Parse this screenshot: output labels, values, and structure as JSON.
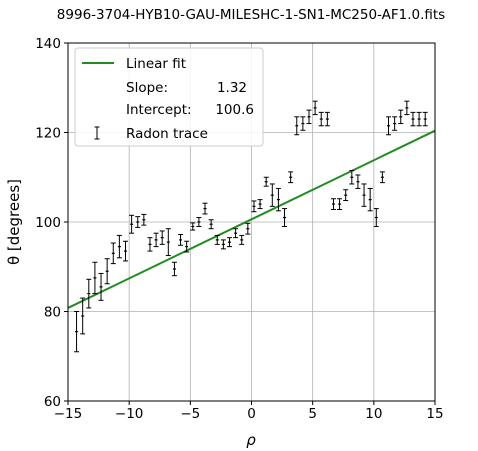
{
  "chart_data": {
    "type": "scatter",
    "title": "8996-3704-HYB10-GAU-MILESHC-1-SN1-MC250-AF1.0.fits",
    "xlabel": "ρ",
    "ylabel": "θ [degrees]",
    "xlim": [
      -15,
      15
    ],
    "ylim": [
      60,
      140
    ],
    "xticks": [
      -15,
      -10,
      -5,
      0,
      5,
      10,
      15
    ],
    "xtick_labels": [
      "−15",
      "−10",
      "−5",
      "0",
      "5",
      "10",
      "15"
    ],
    "yticks": [
      60,
      80,
      100,
      120,
      140
    ],
    "ytick_labels": [
      "60",
      "80",
      "100",
      "120",
      "140"
    ],
    "grid": true,
    "legend_position": "top-left",
    "fit": {
      "label": "Linear fit",
      "slope": 1.32,
      "intercept": 100.6,
      "slope_label": "Slope:",
      "slope_text": "1.32",
      "intercept_label": "Intercept:",
      "intercept_text": "100.6",
      "color": "#228B22"
    },
    "series": [
      {
        "name": "Radon trace",
        "color": "#000000",
        "x": [
          -14.3,
          -13.8,
          -13.3,
          -12.8,
          -12.3,
          -11.8,
          -11.3,
          -10.8,
          -10.3,
          -9.8,
          -9.3,
          -8.8,
          -8.3,
          -7.8,
          -7.3,
          -6.8,
          -6.3,
          -5.8,
          -5.3,
          -4.8,
          -4.3,
          -3.8,
          -3.3,
          -2.8,
          -2.3,
          -1.8,
          -1.3,
          -0.8,
          -0.3,
          0.2,
          0.7,
          1.2,
          1.7,
          2.2,
          2.7,
          3.2,
          3.7,
          4.2,
          4.7,
          5.2,
          5.7,
          6.2,
          6.7,
          7.2,
          7.7,
          8.2,
          8.7,
          9.2,
          9.7,
          10.2,
          10.7,
          11.2,
          11.7,
          12.2,
          12.7,
          13.2,
          13.7,
          14.2
        ],
        "y": [
          75.5,
          79,
          84,
          87.5,
          85.5,
          89,
          93,
          94.5,
          93.5,
          99.5,
          100,
          100.5,
          95,
          96,
          96.5,
          95.5,
          89.5,
          96,
          94.5,
          99,
          100,
          103,
          99.5,
          96,
          95,
          95.5,
          97.5,
          96,
          98.5,
          103.5,
          104,
          109,
          106,
          105,
          101,
          110,
          121.5,
          122,
          123.5,
          125.5,
          123,
          123,
          104,
          104,
          106,
          110,
          109,
          106,
          105,
          101,
          110,
          121.5,
          122,
          123.5,
          125.5,
          123,
          123,
          123
        ],
        "yerr": [
          4.5,
          4,
          3.2,
          3.5,
          3,
          2.8,
          2.3,
          2.5,
          2.2,
          2,
          1.2,
          1.2,
          1.5,
          1.5,
          1.5,
          3,
          1.5,
          1.2,
          1.2,
          0.8,
          1,
          1.2,
          1,
          1,
          1,
          1,
          1,
          1,
          1.2,
          1.2,
          1,
          1,
          2.5,
          2.5,
          2,
          1.2,
          2,
          1.5,
          1.5,
          1.5,
          1.5,
          1.5,
          1.2,
          1.2,
          1.2,
          1.5,
          1.5,
          2.5,
          2.5,
          2,
          1.2,
          2,
          1.5,
          1.5,
          1.5,
          1.5,
          1.5,
          1.5
        ]
      }
    ]
  }
}
